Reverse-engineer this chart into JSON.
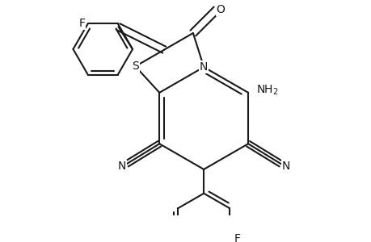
{
  "background_color": "#ffffff",
  "line_color": "#1a1a1a",
  "line_width": 1.5,
  "fig_width": 4.6,
  "fig_height": 3.0,
  "dpi": 100,
  "xlim": [
    -2.8,
    2.8
  ],
  "ylim": [
    -2.1,
    2.1
  ]
}
